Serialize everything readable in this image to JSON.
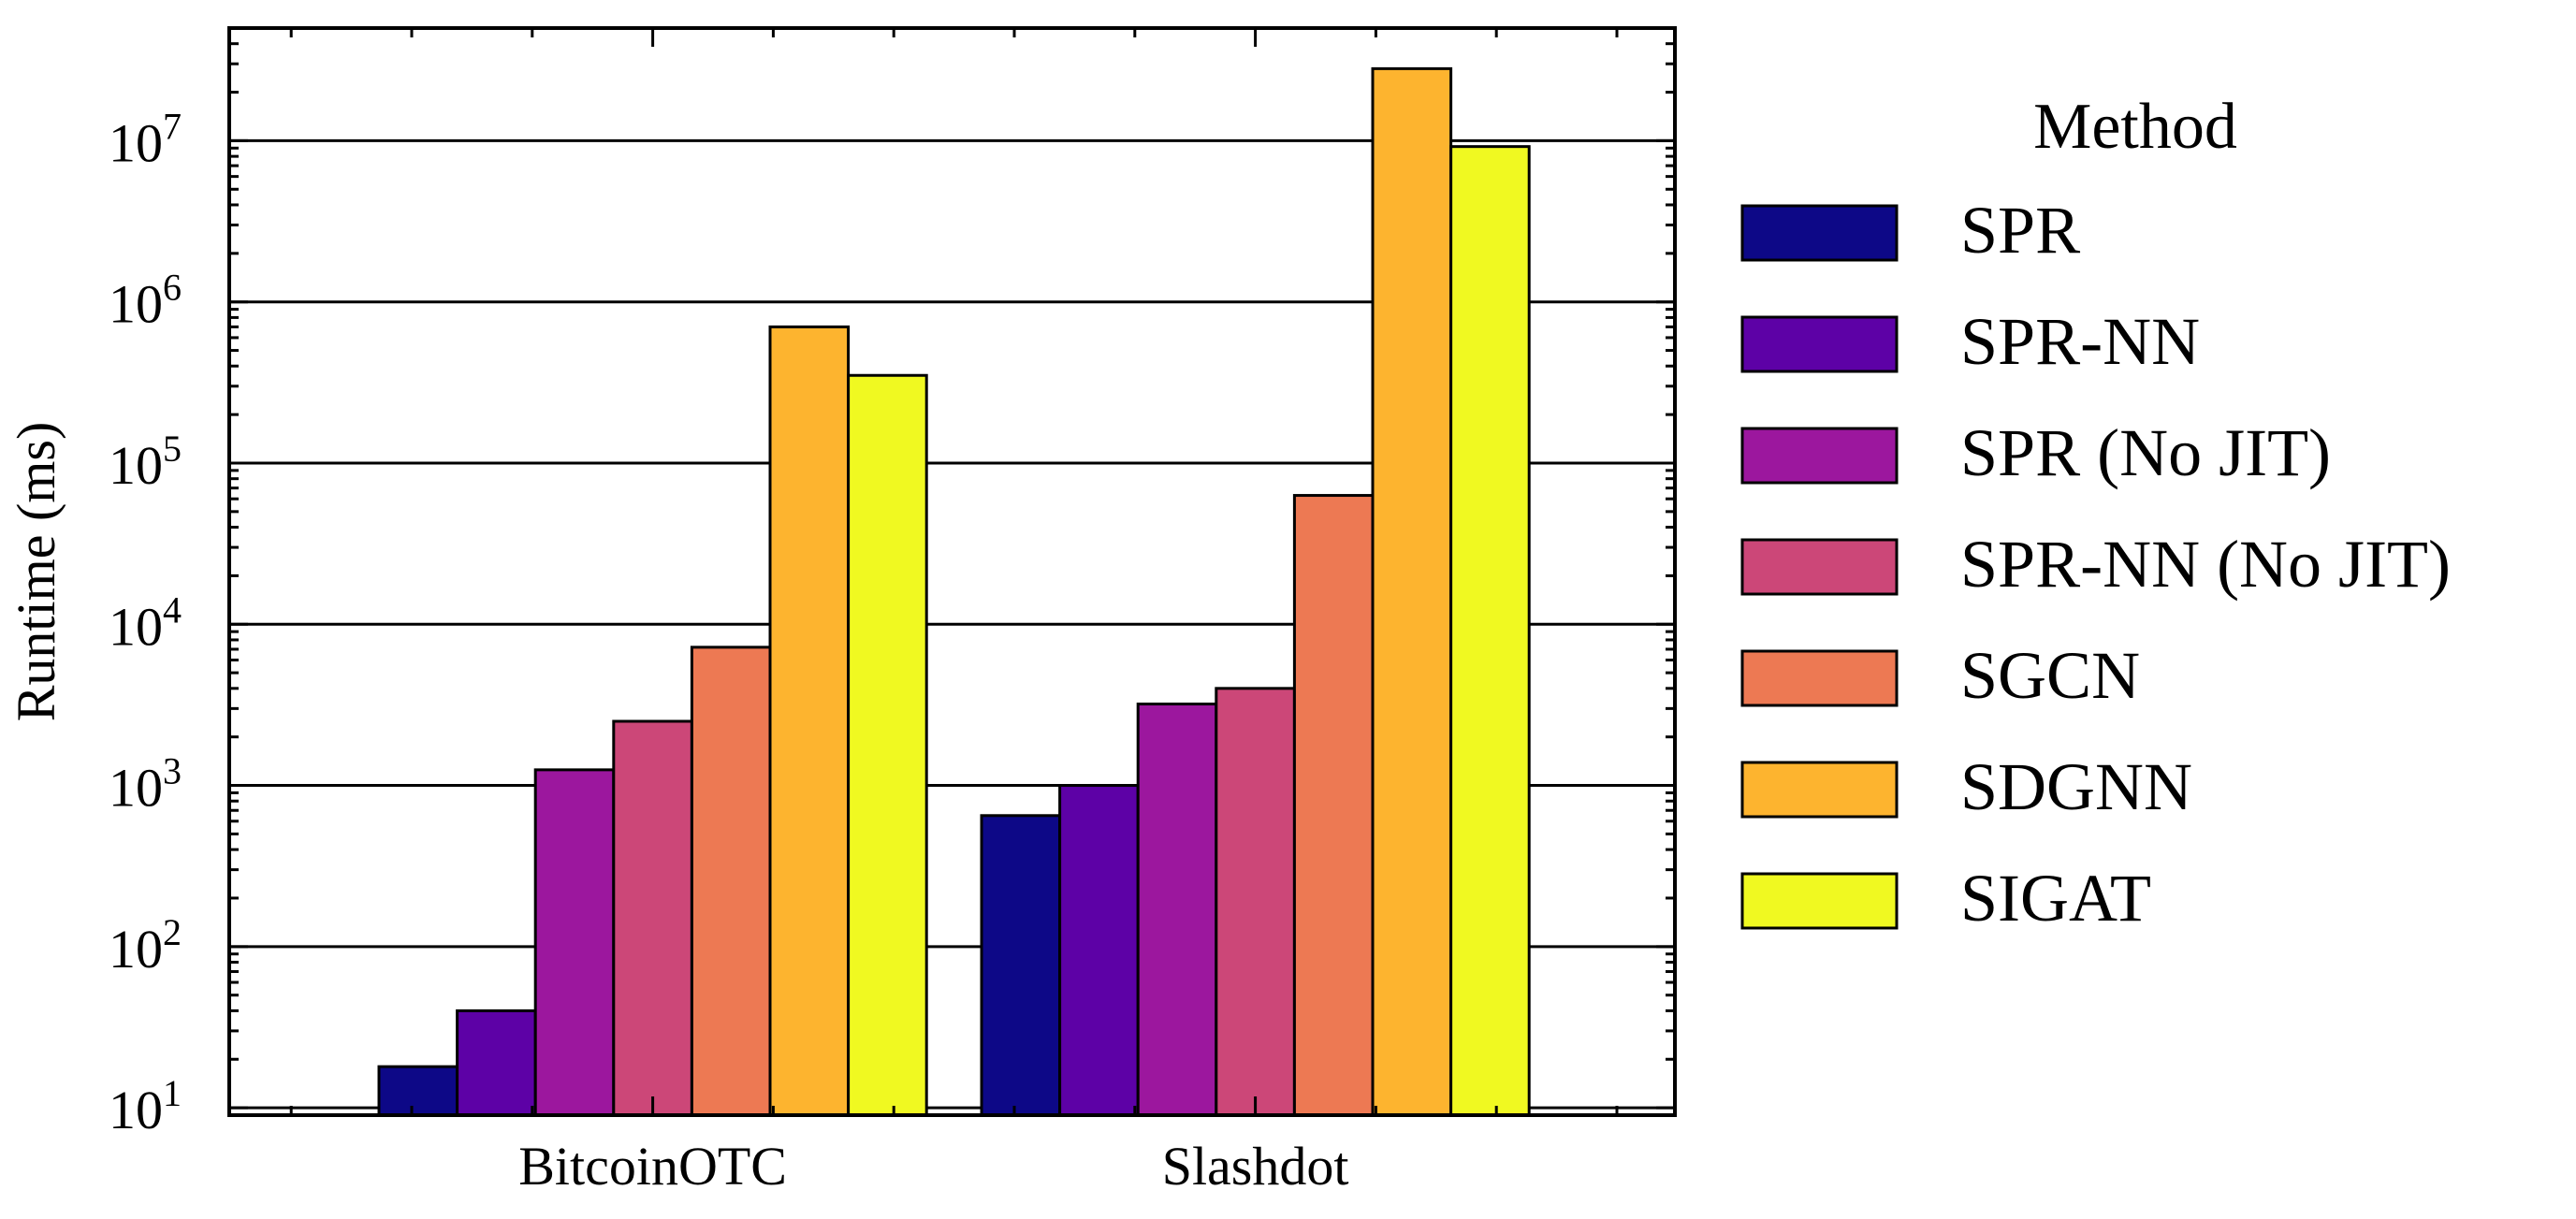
{
  "chart_data": {
    "type": "bar",
    "categories": [
      "BitcoinOTC",
      "Slashdot"
    ],
    "ylabel": "Runtime (ms)",
    "xlabel": "",
    "yscale": "log",
    "ylim": [
      9,
      50000000
    ],
    "yticks": [
      {
        "value": 10,
        "base": "10",
        "exp": "1"
      },
      {
        "value": 100,
        "base": "10",
        "exp": "2"
      },
      {
        "value": 1000,
        "base": "10",
        "exp": "3"
      },
      {
        "value": 10000,
        "base": "10",
        "exp": "4"
      },
      {
        "value": 100000,
        "base": "10",
        "exp": "5"
      },
      {
        "value": 1000000,
        "base": "10",
        "exp": "6"
      },
      {
        "value": 10000000,
        "base": "10",
        "exp": "7"
      }
    ],
    "grid": "y-major",
    "legend": {
      "title": "Method",
      "placement": "right"
    },
    "series": [
      {
        "name": "SPR",
        "color": "#0d0887",
        "values": [
          18,
          650
        ]
      },
      {
        "name": "SPR-NN",
        "color": "#5d01a6",
        "values": [
          40,
          1000
        ]
      },
      {
        "name": "SPR (No JIT)",
        "color": "#9c179e",
        "values": [
          1250,
          3200
        ]
      },
      {
        "name": "SPR-NN (No JIT)",
        "color": "#cc4778",
        "values": [
          2500,
          4000
        ]
      },
      {
        "name": "SGCN",
        "color": "#ed7953",
        "values": [
          7200,
          63000
        ]
      },
      {
        "name": "SDGNN",
        "color": "#fdb42f",
        "values": [
          700000,
          28000000
        ]
      },
      {
        "name": "SIGAT",
        "color": "#f0f921",
        "values": [
          350000,
          9200000
        ]
      }
    ]
  }
}
